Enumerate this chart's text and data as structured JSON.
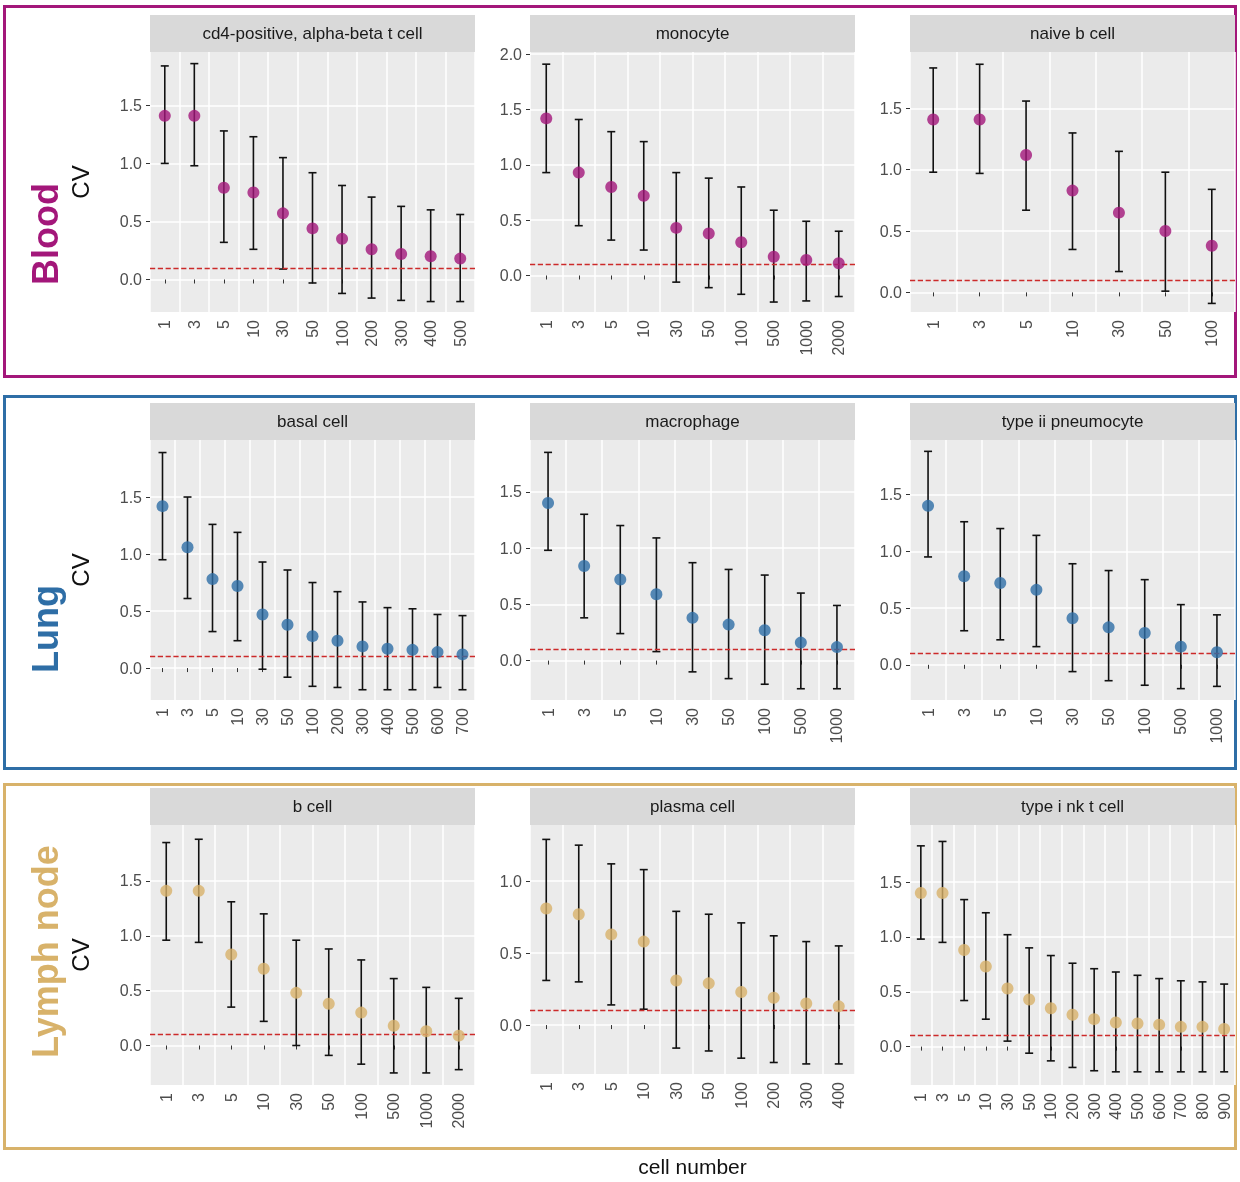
{
  "chart_data": [
    {
      "type": "scatter",
      "title": "cd4-positive, alpha-beta t cell",
      "ylabel": "CV",
      "annotations": [
        "Blood"
      ],
      "marker": "circle",
      "grid": true,
      "categories": [
        "1",
        "3",
        "5",
        "10",
        "30",
        "50",
        "100",
        "200",
        "300",
        "400",
        "500"
      ],
      "series": [
        {
          "color": "#a3177a",
          "values": [
            1.41,
            1.41,
            0.79,
            0.75,
            0.57,
            0.44,
            0.35,
            0.26,
            0.22,
            0.2,
            0.18
          ],
          "errors": [
            [
              1.0,
              1.84
            ],
            [
              0.98,
              1.86
            ],
            [
              0.32,
              1.28
            ],
            [
              0.26,
              1.23
            ],
            [
              0.09,
              1.05
            ],
            [
              -0.03,
              0.92
            ],
            [
              -0.12,
              0.81
            ],
            [
              -0.16,
              0.71
            ],
            [
              -0.18,
              0.63
            ],
            [
              -0.19,
              0.6
            ],
            [
              -0.19,
              0.56
            ]
          ]
        }
      ],
      "ylim": [
        -0.28,
        1.96
      ],
      "yticks": [
        {
          "value": 0,
          "label": "0.0"
        },
        {
          "value": 0.5,
          "label": "0.5"
        },
        {
          "value": 1,
          "label": "1.0"
        },
        {
          "value": 1.5,
          "label": "1.5"
        }
      ],
      "ref_lines": [
        {
          "axis": "y",
          "value": 0.1,
          "color": "#cc2a2a",
          "line_style": "dashed"
        }
      ]
    },
    {
      "type": "scatter",
      "title": "monocyte",
      "marker": "circle",
      "grid": true,
      "categories": [
        "1",
        "3",
        "5",
        "10",
        "30",
        "50",
        "100",
        "500",
        "1000",
        "2000"
      ],
      "series": [
        {
          "color": "#a3177a",
          "values": [
            1.42,
            0.93,
            0.8,
            0.72,
            0.43,
            0.38,
            0.3,
            0.17,
            0.14,
            0.11
          ],
          "errors": [
            [
              0.93,
              1.91
            ],
            [
              0.45,
              1.41
            ],
            [
              0.32,
              1.3
            ],
            [
              0.23,
              1.21
            ],
            [
              -0.06,
              0.93
            ],
            [
              -0.11,
              0.88
            ],
            [
              -0.17,
              0.8
            ],
            [
              -0.24,
              0.59
            ],
            [
              -0.23,
              0.49
            ],
            [
              -0.19,
              0.4
            ]
          ]
        }
      ],
      "ylim": [
        -0.33,
        2.02
      ],
      "yticks": [
        {
          "value": 0,
          "label": "0.0"
        },
        {
          "value": 0.5,
          "label": "0.5"
        },
        {
          "value": 1,
          "label": "1.0"
        },
        {
          "value": 1.5,
          "label": "1.5"
        },
        {
          "value": 2,
          "label": "2.0"
        }
      ],
      "ref_lines": [
        {
          "axis": "y",
          "value": 0.1,
          "color": "#cc2a2a",
          "line_style": "dashed"
        }
      ]
    },
    {
      "type": "scatter",
      "title": "naive b cell",
      "marker": "circle",
      "grid": true,
      "categories": [
        "1",
        "3",
        "5",
        "10",
        "30",
        "50",
        "100"
      ],
      "series": [
        {
          "color": "#a3177a",
          "values": [
            1.41,
            1.41,
            1.12,
            0.83,
            0.65,
            0.5,
            0.38
          ],
          "errors": [
            [
              0.98,
              1.83
            ],
            [
              0.97,
              1.86
            ],
            [
              0.67,
              1.56
            ],
            [
              0.35,
              1.3
            ],
            [
              0.17,
              1.15
            ],
            [
              0.01,
              0.98
            ],
            [
              -0.09,
              0.84
            ]
          ]
        }
      ],
      "ylim": [
        -0.16,
        1.96
      ],
      "yticks": [
        {
          "value": 0,
          "label": "0.0"
        },
        {
          "value": 0.5,
          "label": "0.5"
        },
        {
          "value": 1,
          "label": "1.0"
        },
        {
          "value": 1.5,
          "label": "1.5"
        }
      ],
      "ref_lines": [
        {
          "axis": "y",
          "value": 0.1,
          "color": "#cc2a2a",
          "line_style": "dashed"
        }
      ]
    },
    {
      "type": "scatter",
      "title": "basal cell",
      "ylabel": "CV",
      "annotations": [
        "Lung"
      ],
      "marker": "circle",
      "grid": true,
      "categories": [
        "1",
        "3",
        "5",
        "10",
        "30",
        "50",
        "100",
        "200",
        "300",
        "400",
        "500",
        "600",
        "700"
      ],
      "series": [
        {
          "color": "#2e6ea6",
          "values": [
            1.42,
            1.06,
            0.78,
            0.72,
            0.47,
            0.38,
            0.28,
            0.24,
            0.19,
            0.17,
            0.16,
            0.14,
            0.12
          ],
          "errors": [
            [
              0.95,
              1.89
            ],
            [
              0.61,
              1.5
            ],
            [
              0.32,
              1.26
            ],
            [
              0.24,
              1.19
            ],
            [
              -0.01,
              0.93
            ],
            [
              -0.08,
              0.86
            ],
            [
              -0.16,
              0.75
            ],
            [
              -0.17,
              0.67
            ],
            [
              -0.19,
              0.58
            ],
            [
              -0.19,
              0.53
            ],
            [
              -0.19,
              0.52
            ],
            [
              -0.17,
              0.47
            ],
            [
              -0.19,
              0.46
            ]
          ]
        }
      ],
      "ylim": [
        -0.28,
        2.0
      ],
      "yticks": [
        {
          "value": 0,
          "label": "0.0"
        },
        {
          "value": 0.5,
          "label": "0.5"
        },
        {
          "value": 1,
          "label": "1.0"
        },
        {
          "value": 1.5,
          "label": "1.5"
        }
      ],
      "ref_lines": [
        {
          "axis": "y",
          "value": 0.1,
          "color": "#cc2a2a",
          "line_style": "dashed"
        }
      ]
    },
    {
      "type": "scatter",
      "title": "macrophage",
      "marker": "circle",
      "grid": true,
      "categories": [
        "1",
        "3",
        "5",
        "10",
        "30",
        "50",
        "100",
        "500",
        "1000"
      ],
      "series": [
        {
          "color": "#2e6ea6",
          "values": [
            1.4,
            0.84,
            0.72,
            0.59,
            0.38,
            0.32,
            0.27,
            0.16,
            0.12
          ],
          "errors": [
            [
              0.98,
              1.85
            ],
            [
              0.38,
              1.3
            ],
            [
              0.24,
              1.2
            ],
            [
              0.08,
              1.09
            ],
            [
              -0.1,
              0.87
            ],
            [
              -0.16,
              0.81
            ],
            [
              -0.21,
              0.76
            ],
            [
              -0.25,
              0.6
            ],
            [
              -0.25,
              0.49
            ]
          ]
        }
      ],
      "ylim": [
        -0.35,
        1.96
      ],
      "yticks": [
        {
          "value": 0,
          "label": "0.0"
        },
        {
          "value": 0.5,
          "label": "0.5"
        },
        {
          "value": 1,
          "label": "1.0"
        },
        {
          "value": 1.5,
          "label": "1.5"
        }
      ],
      "ref_lines": [
        {
          "axis": "y",
          "value": 0.1,
          "color": "#cc2a2a",
          "line_style": "dashed"
        }
      ]
    },
    {
      "type": "scatter",
      "title": "type ii pneumocyte",
      "marker": "circle",
      "grid": true,
      "categories": [
        "1",
        "3",
        "5",
        "10",
        "30",
        "50",
        "100",
        "500",
        "1000"
      ],
      "series": [
        {
          "color": "#2e6ea6",
          "values": [
            1.4,
            0.78,
            0.72,
            0.66,
            0.41,
            0.33,
            0.28,
            0.16,
            0.11
          ],
          "errors": [
            [
              0.95,
              1.88
            ],
            [
              0.3,
              1.26
            ],
            [
              0.22,
              1.2
            ],
            [
              0.16,
              1.14
            ],
            [
              -0.06,
              0.89
            ],
            [
              -0.14,
              0.83
            ],
            [
              -0.18,
              0.75
            ],
            [
              -0.21,
              0.53
            ],
            [
              -0.19,
              0.44
            ]
          ]
        }
      ],
      "ylim": [
        -0.31,
        1.98
      ],
      "yticks": [
        {
          "value": 0,
          "label": "0.0"
        },
        {
          "value": 0.5,
          "label": "0.5"
        },
        {
          "value": 1,
          "label": "1.0"
        },
        {
          "value": 1.5,
          "label": "1.5"
        }
      ],
      "ref_lines": [
        {
          "axis": "y",
          "value": 0.1,
          "color": "#cc2a2a",
          "line_style": "dashed"
        }
      ]
    },
    {
      "type": "scatter",
      "title": "b cell",
      "ylabel": "CV",
      "annotations": [
        "Lymph node"
      ],
      "marker": "circle",
      "grid": true,
      "categories": [
        "1",
        "3",
        "5",
        "10",
        "30",
        "50",
        "100",
        "500",
        "1000",
        "2000"
      ],
      "series": [
        {
          "color": "#d8b26a",
          "values": [
            1.41,
            1.41,
            0.83,
            0.7,
            0.48,
            0.38,
            0.3,
            0.18,
            0.13,
            0.09
          ],
          "errors": [
            [
              0.96,
              1.85
            ],
            [
              0.94,
              1.88
            ],
            [
              0.35,
              1.31
            ],
            [
              0.22,
              1.2
            ],
            [
              0.0,
              0.96
            ],
            [
              -0.09,
              0.88
            ],
            [
              -0.17,
              0.78
            ],
            [
              -0.25,
              0.61
            ],
            [
              -0.25,
              0.53
            ],
            [
              -0.22,
              0.43
            ]
          ]
        }
      ],
      "ylim": [
        -0.36,
        2.01
      ],
      "yticks": [
        {
          "value": 0,
          "label": "0.0"
        },
        {
          "value": 0.5,
          "label": "0.5"
        },
        {
          "value": 1,
          "label": "1.0"
        },
        {
          "value": 1.5,
          "label": "1.5"
        }
      ],
      "ref_lines": [
        {
          "axis": "y",
          "value": 0.1,
          "color": "#cc2a2a",
          "line_style": "dashed"
        }
      ]
    },
    {
      "type": "scatter",
      "title": "plasma cell",
      "xlabel": "cell number",
      "marker": "circle",
      "grid": true,
      "categories": [
        "1",
        "3",
        "5",
        "10",
        "30",
        "50",
        "100",
        "200",
        "300",
        "400"
      ],
      "series": [
        {
          "color": "#d8b26a",
          "values": [
            0.81,
            0.77,
            0.63,
            0.58,
            0.31,
            0.29,
            0.23,
            0.19,
            0.15,
            0.13
          ],
          "errors": [
            [
              0.31,
              1.29
            ],
            [
              0.3,
              1.25
            ],
            [
              0.14,
              1.12
            ],
            [
              0.11,
              1.08
            ],
            [
              -0.16,
              0.79
            ],
            [
              -0.18,
              0.77
            ],
            [
              -0.23,
              0.71
            ],
            [
              -0.26,
              0.62
            ],
            [
              -0.27,
              0.58
            ],
            [
              -0.27,
              0.55
            ]
          ]
        }
      ],
      "ylim": [
        -0.34,
        1.39
      ],
      "yticks": [
        {
          "value": 0,
          "label": "0.0"
        },
        {
          "value": 0.5,
          "label": "0.5"
        },
        {
          "value": 1,
          "label": "1.0"
        }
      ],
      "ref_lines": [
        {
          "axis": "y",
          "value": 0.1,
          "color": "#cc2a2a",
          "line_style": "dashed"
        }
      ]
    },
    {
      "type": "scatter",
      "title": "type i nk t cell",
      "marker": "circle",
      "grid": true,
      "categories": [
        "1",
        "3",
        "5",
        "10",
        "30",
        "50",
        "100",
        "200",
        "300",
        "400",
        "500",
        "600",
        "700",
        "800",
        "900"
      ],
      "series": [
        {
          "color": "#d8b26a",
          "values": [
            1.4,
            1.4,
            0.88,
            0.73,
            0.53,
            0.43,
            0.35,
            0.29,
            0.25,
            0.22,
            0.21,
            0.2,
            0.18,
            0.18,
            0.16
          ],
          "errors": [
            [
              0.98,
              1.83
            ],
            [
              0.95,
              1.87
            ],
            [
              0.42,
              1.34
            ],
            [
              0.25,
              1.22
            ],
            [
              0.05,
              1.02
            ],
            [
              -0.06,
              0.9
            ],
            [
              -0.13,
              0.83
            ],
            [
              -0.19,
              0.76
            ],
            [
              -0.22,
              0.71
            ],
            [
              -0.23,
              0.68
            ],
            [
              -0.23,
              0.65
            ],
            [
              -0.23,
              0.62
            ],
            [
              -0.23,
              0.6
            ],
            [
              -0.23,
              0.59
            ],
            [
              -0.23,
              0.57
            ]
          ]
        }
      ],
      "ylim": [
        -0.35,
        2.02
      ],
      "yticks": [
        {
          "value": 0,
          "label": "0.0"
        },
        {
          "value": 0.5,
          "label": "0.5"
        },
        {
          "value": 1,
          "label": "1.0"
        },
        {
          "value": 1.5,
          "label": "1.5"
        }
      ],
      "ref_lines": [
        {
          "axis": "y",
          "value": 0.1,
          "color": "#cc2a2a",
          "line_style": "dashed"
        }
      ]
    }
  ]
}
